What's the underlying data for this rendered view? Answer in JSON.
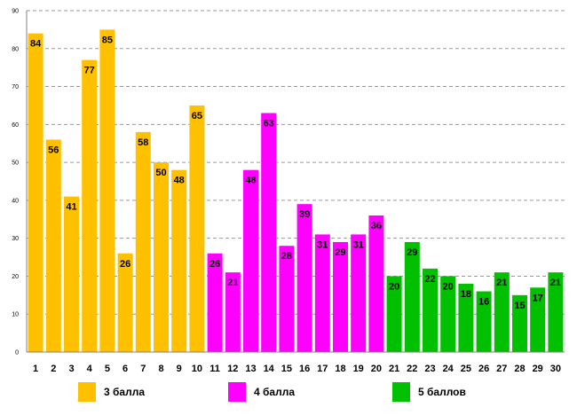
{
  "chart_data": {
    "type": "bar",
    "categories": [
      "1",
      "2",
      "3",
      "4",
      "5",
      "6",
      "7",
      "8",
      "9",
      "10",
      "11",
      "12",
      "13",
      "14",
      "15",
      "16",
      "17",
      "18",
      "19",
      "20",
      "21",
      "22",
      "23",
      "24",
      "25",
      "26",
      "27",
      "28",
      "29",
      "30"
    ],
    "values": [
      84,
      56,
      41,
      77,
      85,
      26,
      58,
      50,
      48,
      65,
      26,
      21,
      48,
      63,
      28,
      39,
      31,
      29,
      31,
      36,
      20,
      29,
      22,
      20,
      18,
      16,
      21,
      15,
      17,
      21
    ],
    "groups": [
      0,
      0,
      0,
      0,
      0,
      0,
      0,
      0,
      0,
      0,
      1,
      1,
      1,
      1,
      1,
      1,
      1,
      1,
      1,
      1,
      2,
      2,
      2,
      2,
      2,
      2,
      2,
      2,
      2,
      2
    ],
    "ylim": [
      0,
      90
    ],
    "yticks": [
      "0",
      "10",
      "20",
      "30",
      "40",
      "50",
      "60",
      "70",
      "80",
      "90"
    ],
    "grid": true,
    "legend_position": "bottom",
    "series": [
      {
        "name": "3 балла",
        "color": "#FFC000"
      },
      {
        "name": "4 балла",
        "color": "#FF00FF"
      },
      {
        "name": "5 баллов",
        "color": "#00C000"
      }
    ]
  }
}
